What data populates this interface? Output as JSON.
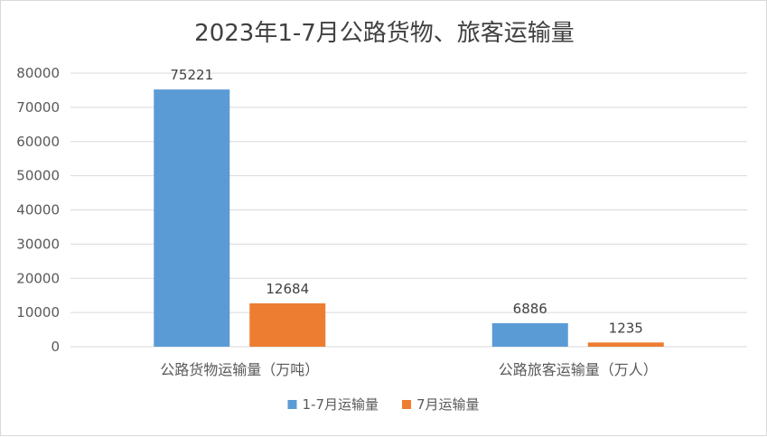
{
  "chart_data": {
    "type": "bar",
    "title": "2023年1-7月公路货物、旅客运输量",
    "categories": [
      "公路货物运输量（万吨）",
      "公路旅客运输量（万人）"
    ],
    "series": [
      {
        "name": "1-7月运输量",
        "values": [
          75221,
          6886
        ],
        "color": "#5b9bd5"
      },
      {
        "name": "7月运输量",
        "values": [
          12684,
          1235
        ],
        "color": "#ed7d31"
      }
    ],
    "ylim": [
      0,
      80000
    ],
    "yticks": [
      0,
      10000,
      20000,
      30000,
      40000,
      50000,
      60000,
      70000,
      80000
    ],
    "grid": true,
    "legend": "bottom"
  }
}
